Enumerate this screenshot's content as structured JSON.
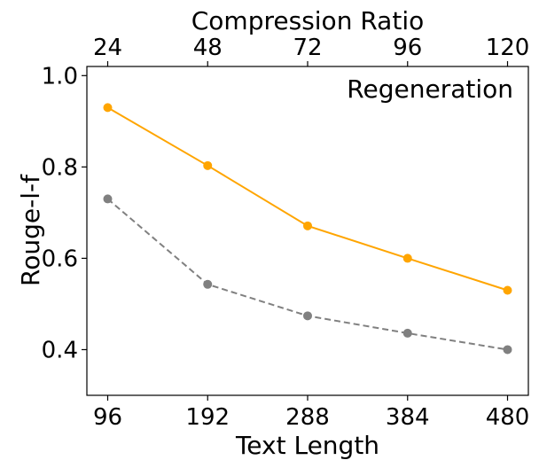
{
  "chart_data": {
    "type": "line",
    "annotation": "Regeneration",
    "xlabel": "Text Length",
    "x2label": "Compression Ratio",
    "ylabel": "Rouge-l-f",
    "x": [
      96,
      192,
      288,
      384,
      480
    ],
    "x_tick_labels": [
      "96",
      "192",
      "288",
      "384",
      "480"
    ],
    "x2_tick_labels": [
      "24",
      "48",
      "72",
      "96",
      "120"
    ],
    "y_ticks": [
      0.4,
      0.6,
      0.8,
      1.0
    ],
    "y_tick_labels": [
      "0.4",
      "0.6",
      "0.8",
      "1.0"
    ],
    "xlim": [
      76,
      500
    ],
    "ylim": [
      0.3,
      1.02
    ],
    "grid": false,
    "series": [
      {
        "values": [
          0.93,
          0.803,
          0.671,
          0.6,
          0.53
        ],
        "color": "#FFA500",
        "style": "solid"
      },
      {
        "values": [
          0.73,
          0.543,
          0.474,
          0.436,
          0.4
        ],
        "color": "#808080",
        "style": "dashed"
      }
    ]
  }
}
